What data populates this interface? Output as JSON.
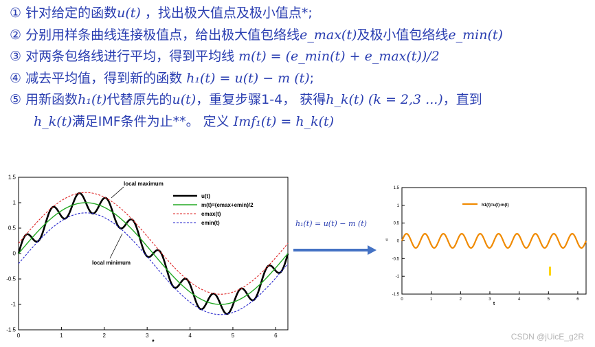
{
  "steps": [
    {
      "num": "①",
      "pre": "针对给定的函数",
      "math": "u(t)",
      "post": " ，找出极大值点及极小值点*;"
    },
    {
      "num": "②",
      "pre": "分别用样条曲线连接极值点，给出极大值包络线",
      "math": "e_max(t)",
      "mid": "及极小值包络线",
      "math2": "e_min(t)"
    },
    {
      "num": "③",
      "pre": "对两条包络线进行平均，得到平均线",
      "math": "m(t) = (e_min(t) + e_max(t))/2"
    },
    {
      "num": "④",
      "pre": "减去平均值，得到新的函数 ",
      "math": "h₁(t) = u(t) − m (t)",
      "post": ";"
    },
    {
      "num": "⑤",
      "pre": "用新函数",
      "math": "h₁(t)",
      "mid": "代替原先的",
      "math2": "u(t)",
      "post": "，重复步骤1-4，  获得",
      "math3": "h_k(t) (k = 2,3 ...)",
      "post2": "，直到"
    },
    {
      "cont": true,
      "math": "h_k(t)",
      "pre": "满足IMF条件为止**。  定义 ",
      "math2": "Imf₁(t) = h_k(t)"
    }
  ],
  "chart_data": [
    {
      "type": "line",
      "xlabel": "t",
      "ylabel": "",
      "xlim": [
        0,
        6.283
      ],
      "ylim": [
        -1.5,
        1.5
      ],
      "xticks": [
        0,
        1,
        2,
        3,
        4,
        5,
        6
      ],
      "yticks": [
        "1.5",
        "1",
        "0.5",
        "0",
        "-0.5",
        "-1",
        "-1.5"
      ],
      "legend_position": "top-right",
      "series": [
        {
          "name": "u(t)",
          "color": "#000000",
          "formula": "sin(t)+0.2*sin(10t)"
        },
        {
          "name": "m(t)=(emax+emin)/2",
          "color": "#22a822",
          "formula": "sin(t)"
        },
        {
          "name": "emax(t)",
          "color": "#dd2222",
          "dash": true,
          "formula": "sin(t)+0.2"
        },
        {
          "name": "emin(t)",
          "color": "#2222cc",
          "dash": true,
          "formula": "sin(t)-0.2"
        }
      ],
      "annotations": [
        "local maximum",
        "local minimum"
      ]
    },
    {
      "type": "line",
      "xlabel": "t",
      "ylabel": "u",
      "xlim": [
        0,
        6.283
      ],
      "ylim": [
        -1.5,
        1.5
      ],
      "xticks": [
        0,
        1,
        2,
        3,
        4,
        5,
        6
      ],
      "yticks": [
        "1.5",
        "1",
        "0.5",
        "0",
        "-0.5",
        "-1",
        "-1.5"
      ],
      "legend_position": "top-center",
      "series": [
        {
          "name": "h1(t)=u(t)-m(t)",
          "color": "#f08a00",
          "formula": "0.2*sin(10t)"
        }
      ]
    }
  ],
  "arrow": {
    "label": "h₁(t) = u(t) − m (t)",
    "color": "#4472c4"
  },
  "watermark": "CSDN @jUicE_g2R",
  "colors": {
    "text": "#2a3eb1"
  }
}
